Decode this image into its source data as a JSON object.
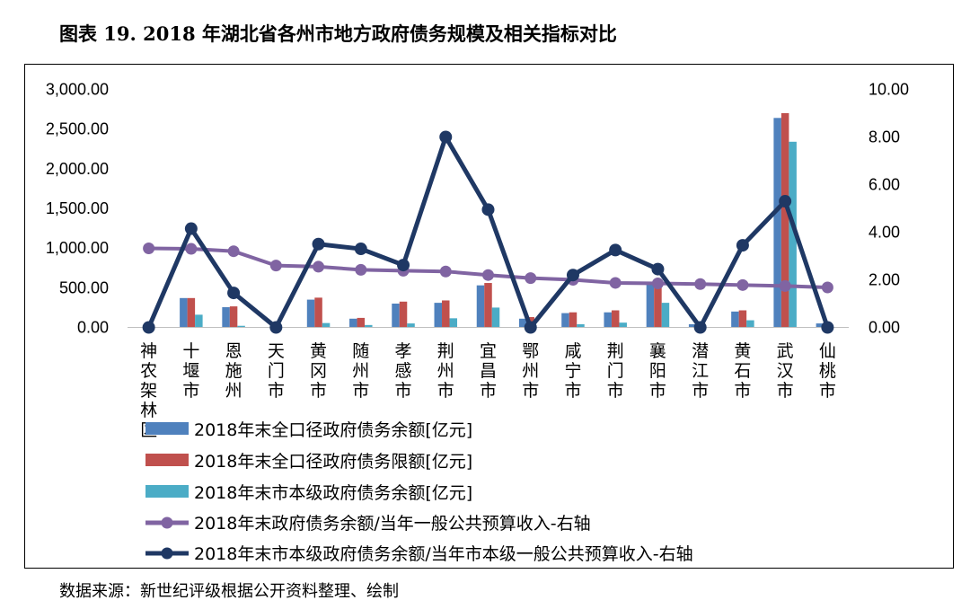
{
  "title": "图表 19. 2018 年湖北省各州市地方政府债务规模及相关指标对比",
  "source": "数据来源：新世纪评级根据公开资料整理、绘制",
  "chart_data": {
    "type": "bar",
    "categories": [
      "神农架林区",
      "十堰市",
      "恩施州",
      "天门市",
      "黄冈市",
      "随州市",
      "孝感市",
      "荆州市",
      "宜昌市",
      "鄂州市",
      "咸宁市",
      "荆门市",
      "襄阳市",
      "潜江市",
      "黄石市",
      "武汉市",
      "仙桃市"
    ],
    "left_axis": {
      "ylim": [
        0,
        3000
      ],
      "ticks": [
        "0.00",
        "500.00",
        "1,000.00",
        "1,500.00",
        "2,000.00",
        "2,500.00",
        "3,000.00"
      ]
    },
    "right_axis": {
      "ylim": [
        0,
        10
      ],
      "ticks": [
        "0.00",
        "2.00",
        "4.00",
        "6.00",
        "8.00",
        "10.00"
      ]
    },
    "series": [
      {
        "name": "2018年末全口径政府债务余额[亿元]",
        "type": "bar",
        "axis": "left",
        "color": "#4F81BD",
        "values": [
          0,
          370,
          255,
          0,
          350,
          110,
          300,
          310,
          530,
          110,
          180,
          190,
          550,
          40,
          200,
          2640,
          50
        ]
      },
      {
        "name": "2018年末全口径政府债务限额[亿元]",
        "type": "bar",
        "axis": "left",
        "color": "#C0504D",
        "values": [
          0,
          370,
          265,
          0,
          375,
          120,
          325,
          340,
          560,
          130,
          190,
          215,
          580,
          0,
          215,
          2700,
          0
        ]
      },
      {
        "name": "2018年末市本级政府债务余额[亿元]",
        "type": "bar",
        "axis": "left",
        "color": "#4BACC6",
        "values": [
          0,
          160,
          20,
          0,
          55,
          30,
          50,
          115,
          250,
          0,
          40,
          60,
          310,
          0,
          90,
          2340,
          0
        ]
      },
      {
        "name": "2018年末政府债务余额/当年一般公共预算收入-右轴",
        "type": "line",
        "axis": "right",
        "color": "#8064A2",
        "values": [
          3.32,
          3.3,
          3.2,
          2.6,
          2.55,
          2.42,
          2.38,
          2.35,
          2.2,
          2.07,
          2.0,
          1.87,
          1.85,
          1.82,
          1.78,
          1.74,
          1.68
        ]
      },
      {
        "name": "2018年末市本级政府债务余额/当年市本级一般公共预算收入-右轴",
        "type": "line",
        "axis": "right",
        "color": "#1F3864",
        "values": [
          0.0,
          4.15,
          1.45,
          0.0,
          3.5,
          3.3,
          2.62,
          8.0,
          4.95,
          0.0,
          2.2,
          3.25,
          2.45,
          0.0,
          3.45,
          5.3,
          0.0
        ]
      }
    ]
  }
}
